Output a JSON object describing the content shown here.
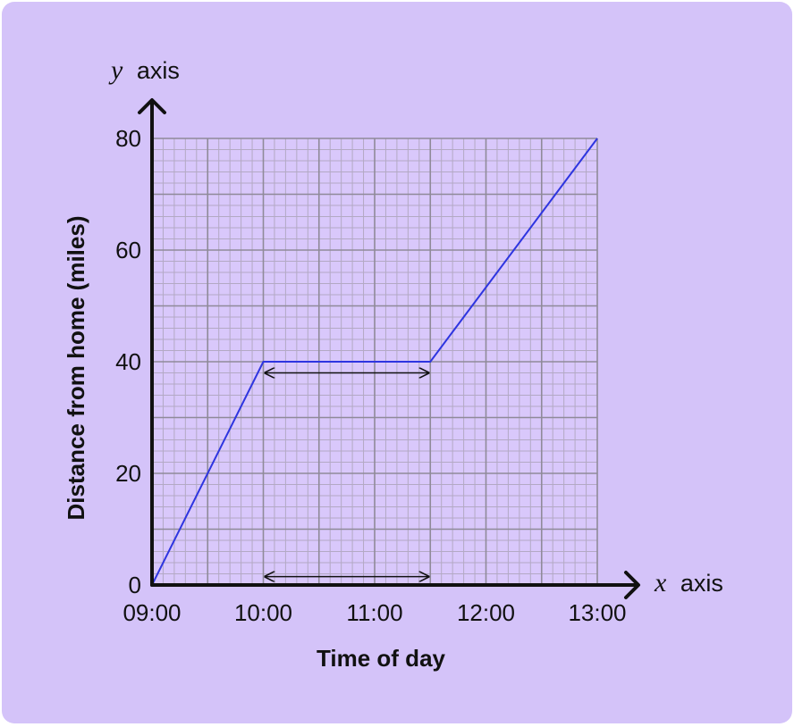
{
  "chart_data": {
    "type": "line",
    "xlabel": "Time of day",
    "ylabel": "Distance from home (miles)",
    "x_axis_name": {
      "var": "x",
      "word": "axis"
    },
    "y_axis_name": {
      "var": "y",
      "word": "axis"
    },
    "x_ticks": [
      "09:00",
      "10:00",
      "11:00",
      "12:00",
      "13:00"
    ],
    "y_ticks": [
      0,
      20,
      40,
      60,
      80
    ],
    "xlim_hours": [
      9,
      13
    ],
    "ylim": [
      0,
      80
    ],
    "grid": true,
    "series": [
      {
        "points": [
          {
            "x": "09:00",
            "y": 0
          },
          {
            "x": "10:00",
            "y": 40
          },
          {
            "x": "11:30",
            "y": 40
          },
          {
            "x": "13:00",
            "y": 80
          }
        ]
      }
    ],
    "annotations": [
      {
        "type": "double-arrow",
        "from": "10:00",
        "to": "11:30",
        "y": 38
      },
      {
        "type": "double-arrow",
        "from": "10:00",
        "to": "11:30",
        "y": 1.5
      }
    ],
    "colors": {
      "background": "#d4c3f9",
      "plot": "#d9c8fb",
      "grid_minor": "#b3a9c4",
      "grid_major": "#8f8a99",
      "line": "#2e35e0",
      "axis": "#111111"
    }
  }
}
